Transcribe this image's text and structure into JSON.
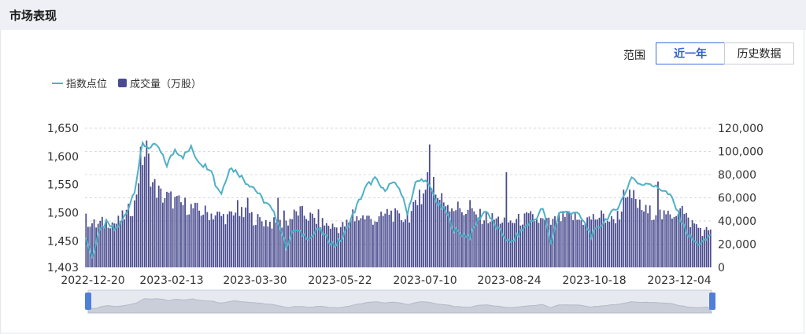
{
  "header": {
    "title": "市场表现"
  },
  "controls": {
    "range_label": "范围",
    "buttons": [
      {
        "label": "近一年",
        "active": true
      },
      {
        "label": "历史数据",
        "active": false
      }
    ]
  },
  "legend": {
    "line": "指数点位",
    "bar": "成交量（万股）"
  },
  "chart_data": {
    "type": "bar+line",
    "series": [
      {
        "name": "指数点位",
        "type": "line",
        "axis": "left",
        "color": "#4fb0c6"
      },
      {
        "name": "成交量（万股）",
        "type": "bar",
        "axis": "right",
        "color": "#4a4c8f"
      }
    ],
    "x_ticks": [
      "2022-12-20",
      "2023-02-13",
      "2023-03-30",
      "2023-05-22",
      "2023-07-10",
      "2023-08-24",
      "2023-10-18",
      "2023-12-04"
    ],
    "y_left": {
      "ticks": [
        "1,650",
        "1,600",
        "1,550",
        "1,500",
        "1,450",
        "1,403"
      ],
      "min": 1403,
      "max": 1650
    },
    "y_right": {
      "ticks": [
        "120,000",
        "100,000",
        "80,000",
        "60,000",
        "40,000",
        "20,000",
        "0"
      ],
      "min": 0,
      "max": 120000
    },
    "grid": true,
    "index_keypoints": [
      [
        0,
        1455
      ],
      [
        3,
        1420
      ],
      [
        6,
        1462
      ],
      [
        10,
        1482
      ],
      [
        14,
        1470
      ],
      [
        17,
        1480
      ],
      [
        20,
        1500
      ],
      [
        24,
        1540
      ],
      [
        28,
        1622
      ],
      [
        32,
        1615
      ],
      [
        35,
        1620
      ],
      [
        40,
        1585
      ],
      [
        44,
        1612
      ],
      [
        48,
        1600
      ],
      [
        52,
        1615
      ],
      [
        55,
        1595
      ],
      [
        58,
        1585
      ],
      [
        62,
        1578
      ],
      [
        64,
        1550
      ],
      [
        67,
        1535
      ],
      [
        71,
        1580
      ],
      [
        75,
        1572
      ],
      [
        79,
        1555
      ],
      [
        83,
        1545
      ],
      [
        87,
        1525
      ],
      [
        91,
        1510
      ],
      [
        95,
        1485
      ],
      [
        99,
        1440
      ],
      [
        103,
        1470
      ],
      [
        107,
        1462
      ],
      [
        111,
        1455
      ],
      [
        115,
        1472
      ],
      [
        119,
        1455
      ],
      [
        123,
        1442
      ],
      [
        127,
        1455
      ],
      [
        131,
        1488
      ],
      [
        135,
        1520
      ],
      [
        139,
        1548
      ],
      [
        143,
        1560
      ],
      [
        147,
        1540
      ],
      [
        151,
        1552
      ],
      [
        155,
        1545
      ],
      [
        159,
        1500
      ],
      [
        163,
        1552
      ],
      [
        167,
        1560
      ],
      [
        171,
        1540
      ],
      [
        174,
        1515
      ],
      [
        178,
        1502
      ],
      [
        182,
        1470
      ],
      [
        186,
        1462
      ],
      [
        190,
        1458
      ],
      [
        194,
        1488
      ],
      [
        198,
        1505
      ],
      [
        202,
        1478
      ],
      [
        206,
        1462
      ],
      [
        210,
        1445
      ],
      [
        214,
        1462
      ],
      [
        218,
        1478
      ],
      [
        222,
        1488
      ],
      [
        226,
        1508
      ],
      [
        230,
        1445
      ],
      [
        234,
        1500
      ],
      [
        238,
        1500
      ],
      [
        242,
        1502
      ],
      [
        246,
        1485
      ],
      [
        250,
        1460
      ],
      [
        254,
        1475
      ],
      [
        258,
        1492
      ],
      [
        262,
        1505
      ],
      [
        266,
        1528
      ],
      [
        270,
        1565
      ],
      [
        274,
        1548
      ],
      [
        278,
        1555
      ],
      [
        282,
        1545
      ],
      [
        286,
        1540
      ],
      [
        290,
        1525
      ],
      [
        294,
        1490
      ],
      [
        298,
        1460
      ],
      [
        302,
        1445
      ],
      [
        306,
        1448
      ],
      [
        309,
        1462
      ]
    ],
    "volume_keypoints": [
      [
        0,
        41000
      ],
      [
        5,
        36000
      ],
      [
        10,
        40000
      ],
      [
        15,
        38000
      ],
      [
        20,
        46000
      ],
      [
        24,
        54000
      ],
      [
        27,
        92000
      ],
      [
        30,
        100000
      ],
      [
        33,
        72000
      ],
      [
        37,
        62000
      ],
      [
        42,
        59000
      ],
      [
        46,
        55000
      ],
      [
        50,
        53000
      ],
      [
        55,
        49000
      ],
      [
        60,
        47000
      ],
      [
        65,
        45000
      ],
      [
        70,
        43000
      ],
      [
        75,
        46000
      ],
      [
        80,
        45000
      ],
      [
        85,
        41000
      ],
      [
        90,
        39000
      ],
      [
        95,
        37000
      ],
      [
        100,
        40000
      ],
      [
        105,
        48000
      ],
      [
        110,
        44000
      ],
      [
        115,
        40000
      ],
      [
        120,
        36000
      ],
      [
        125,
        34000
      ],
      [
        130,
        38000
      ],
      [
        135,
        44000
      ],
      [
        140,
        42000
      ],
      [
        145,
        41000
      ],
      [
        150,
        48000
      ],
      [
        155,
        42000
      ],
      [
        160,
        45000
      ],
      [
        165,
        56000
      ],
      [
        170,
        70000
      ],
      [
        174,
        60000
      ],
      [
        178,
        57000
      ],
      [
        182,
        52000
      ],
      [
        186,
        50000
      ],
      [
        190,
        46000
      ],
      [
        195,
        44000
      ],
      [
        200,
        42000
      ],
      [
        205,
        41000
      ],
      [
        210,
        39000
      ],
      [
        215,
        41000
      ],
      [
        220,
        43000
      ],
      [
        225,
        40000
      ],
      [
        230,
        38000
      ],
      [
        235,
        42000
      ],
      [
        240,
        44000
      ],
      [
        245,
        40000
      ],
      [
        250,
        42000
      ],
      [
        255,
        44000
      ],
      [
        260,
        40000
      ],
      [
        265,
        48000
      ],
      [
        270,
        62000
      ],
      [
        274,
        52000
      ],
      [
        278,
        47000
      ],
      [
        282,
        48000
      ],
      [
        286,
        43000
      ],
      [
        290,
        46000
      ],
      [
        294,
        51000
      ],
      [
        298,
        40000
      ],
      [
        302,
        36000
      ],
      [
        306,
        30000
      ],
      [
        309,
        34000
      ]
    ],
    "volume_spikes": [
      [
        75,
        58000
      ],
      [
        80,
        60000
      ],
      [
        95,
        60000
      ],
      [
        98,
        49000
      ],
      [
        115,
        50000
      ],
      [
        132,
        50000
      ],
      [
        165,
        67000
      ],
      [
        169,
        82000
      ],
      [
        170,
        106000
      ],
      [
        172,
        78000
      ],
      [
        177,
        56000
      ],
      [
        190,
        58000
      ],
      [
        208,
        82000
      ],
      [
        266,
        67000
      ],
      [
        283,
        74000
      ],
      [
        294,
        51000
      ],
      [
        295,
        53000
      ]
    ]
  }
}
